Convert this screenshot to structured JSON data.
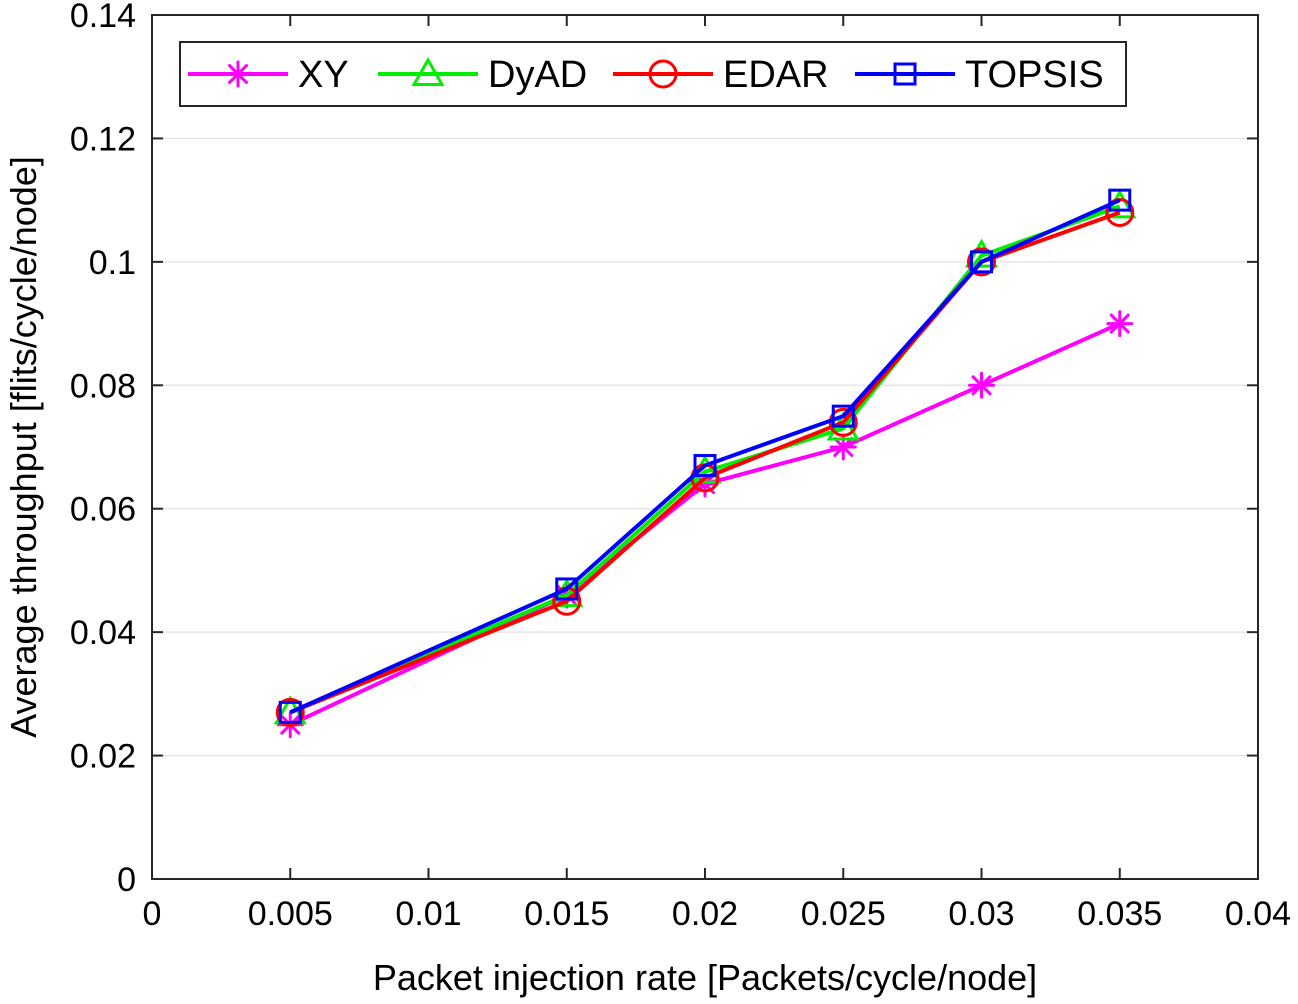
{
  "chart_data": {
    "type": "line",
    "title": "",
    "xlabel": "Packet injection rate [Packets/cycle/node]",
    "ylabel": "Average throughput [flits/cycle/node]",
    "xlim": [
      0,
      0.04
    ],
    "ylim": [
      0,
      0.14
    ],
    "xticks": [
      "0",
      "0.005",
      "0.01",
      "0.015",
      "0.02",
      "0.025",
      "0.03",
      "0.035",
      "0.04"
    ],
    "yticks": [
      "0",
      "0.02",
      "0.04",
      "0.06",
      "0.08",
      "0.1",
      "0.12",
      "0.14"
    ],
    "grid": "horizontal",
    "legend_position": "top",
    "x": [
      0.005,
      0.015,
      0.02,
      0.025,
      0.03,
      0.035
    ],
    "series": [
      {
        "name": "XY",
        "color": "#ff00ff",
        "marker": "asterisk",
        "values": [
          0.025,
          0.046,
          0.064,
          0.07,
          0.08,
          0.09
        ]
      },
      {
        "name": "DyAD",
        "color": "#00ee00",
        "marker": "triangle",
        "values": [
          0.027,
          0.046,
          0.066,
          0.073,
          0.101,
          0.109
        ]
      },
      {
        "name": "EDAR",
        "color": "#ff0000",
        "marker": "circle",
        "values": [
          0.027,
          0.045,
          0.065,
          0.074,
          0.1,
          0.108
        ]
      },
      {
        "name": "TOPSIS",
        "color": "#0000ff",
        "marker": "square",
        "values": [
          0.027,
          0.047,
          0.067,
          0.075,
          0.1,
          0.11
        ]
      }
    ]
  }
}
